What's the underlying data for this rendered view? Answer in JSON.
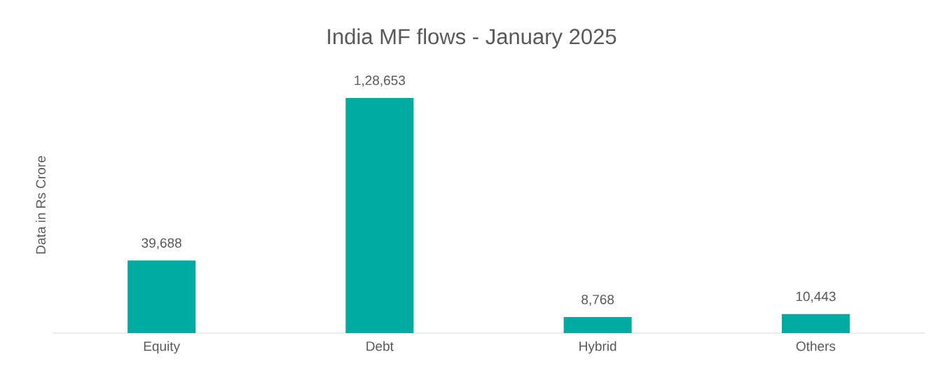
{
  "chart_data": {
    "type": "bar",
    "title": "India MF flows - January 2025",
    "ylabel": "Data in Rs Crore",
    "categories": [
      "Equity",
      "Debt",
      "Hybrid",
      "Others"
    ],
    "values": [
      39688,
      128653,
      8768,
      10443
    ],
    "value_labels": [
      "39,688",
      "1,28,653",
      "8,768",
      "10,443"
    ],
    "color": "#00aba1"
  }
}
